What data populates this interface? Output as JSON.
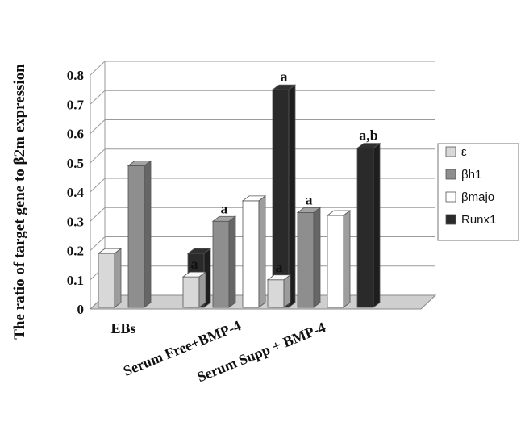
{
  "chart_data": {
    "type": "bar",
    "ylabel": "The ratio of target gene to β2m expression",
    "ylim": [
      0,
      0.8
    ],
    "yticks": [
      "0",
      "0.1",
      "0.2",
      "0.3",
      "0.4",
      "0.5",
      "0.6",
      "0.7",
      "0.8"
    ],
    "grid": true,
    "legend_position": "right",
    "categories": [
      "EBs",
      "Serum Free+BMP-4",
      "Serum Supp + BMP-4"
    ],
    "series": [
      {
        "name": "ε",
        "values": [
          0.19,
          0.11,
          0.1
        ],
        "color": "#d8d8d8"
      },
      {
        "name": "βh1",
        "values": [
          0.49,
          0.3,
          0.33
        ],
        "color": "#8e8e8e"
      },
      {
        "name": "βmajo",
        "values": [
          0.0,
          0.37,
          0.32
        ],
        "color": "#ffffff"
      },
      {
        "name": "Runx1",
        "values": [
          0.19,
          0.75,
          0.55
        ],
        "color": "#2a2a2a"
      }
    ],
    "annotations": [
      {
        "category": 1,
        "series": 0,
        "text": "a"
      },
      {
        "category": 1,
        "series": 1,
        "text": "a"
      },
      {
        "category": 1,
        "series": 3,
        "text": "a"
      },
      {
        "category": 2,
        "series": 0,
        "text": "a"
      },
      {
        "category": 2,
        "series": 1,
        "text": "a"
      },
      {
        "category": 2,
        "series": 3,
        "text": "a,b"
      }
    ]
  }
}
